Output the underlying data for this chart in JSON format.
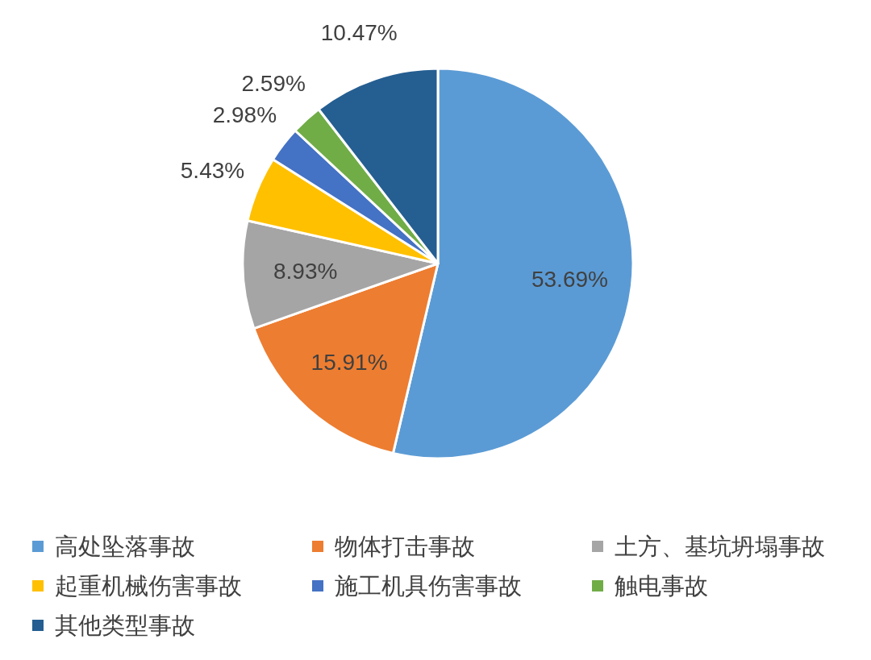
{
  "chart_data": {
    "type": "pie",
    "categories": [
      "高处坠落事故",
      "物体打击事故",
      "土方、基坑坍塌事故",
      "起重机械伤害事故",
      "施工机具伤害事故",
      "触电事故",
      "其他类型事故"
    ],
    "values": [
      53.69,
      15.91,
      8.93,
      5.43,
      2.98,
      2.59,
      10.47
    ],
    "colors": [
      "#5b9bd5",
      "#ed7d31",
      "#a5a5a5",
      "#ffc000",
      "#4472c4",
      "#70ad47",
      "#255e91"
    ],
    "value_labels": [
      "53.69%",
      "15.91%",
      "8.93%",
      "5.43%",
      "2.98%",
      "2.59%",
      "10.47%"
    ],
    "legend": "bottom"
  }
}
